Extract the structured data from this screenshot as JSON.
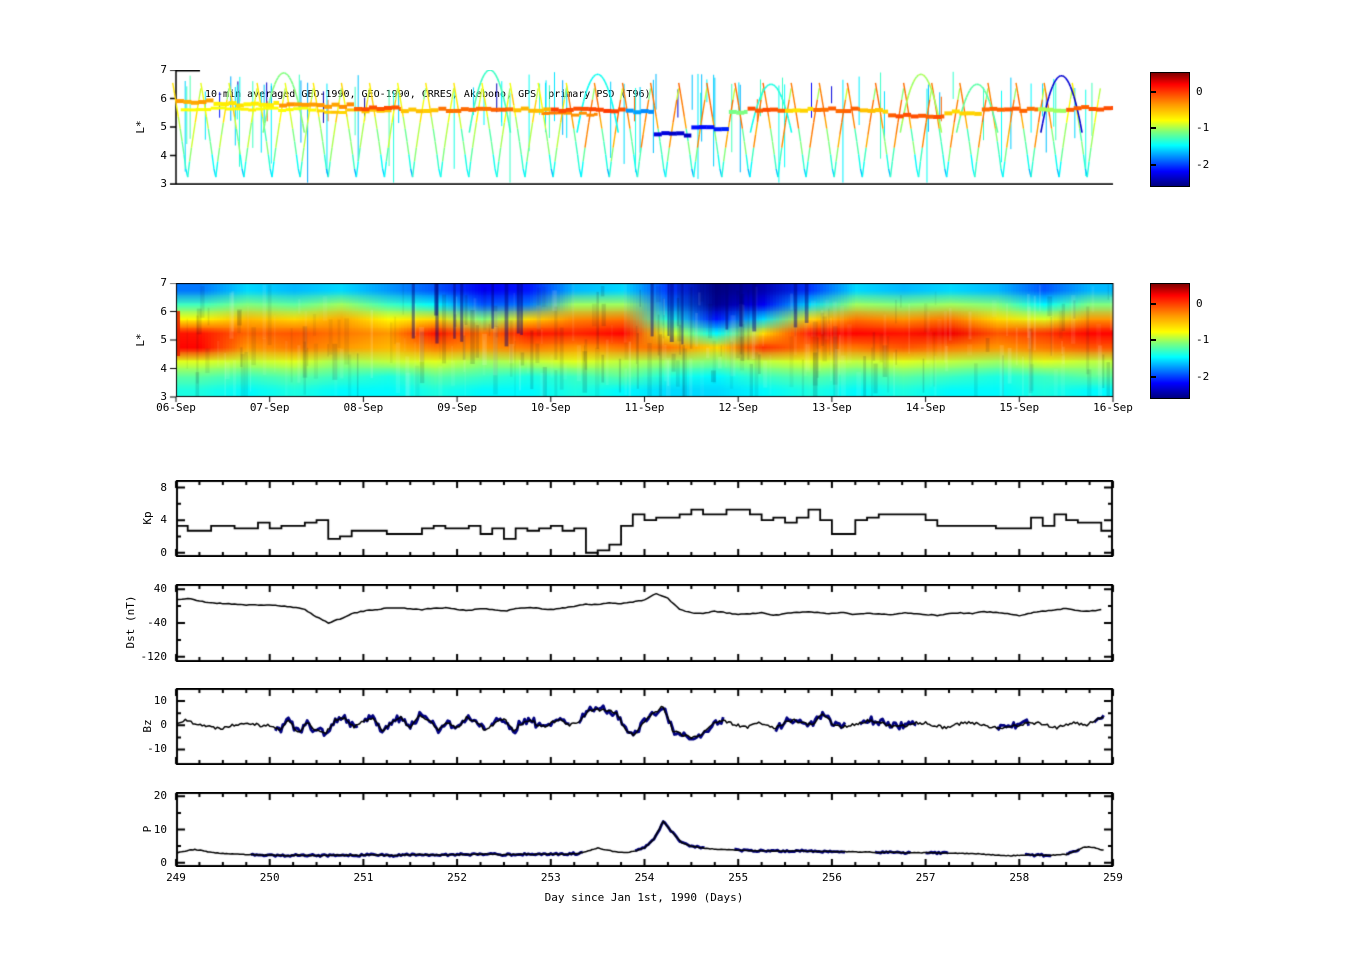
{
  "title": "10-min averaged GEO-1990, GEO-1990, CRRES, Akebono, GPS  primary PSD (T96)",
  "colorbar": {
    "tick_labels": [
      "0",
      "-1",
      "-2"
    ],
    "tick_values": [
      0,
      -1,
      -2
    ],
    "vmin": -2.55,
    "vmax": 0.55,
    "colormap": "jet"
  },
  "axes": {
    "x": {
      "label": "Day since Jan 1st, 1990 (Days)",
      "ticks": [
        249,
        250,
        251,
        252,
        253,
        254,
        255,
        256,
        257,
        258,
        259
      ],
      "lim": [
        249,
        259
      ],
      "minor_step": 0.25
    },
    "date_labels": [
      "06-Sep",
      "07-Sep",
      "08-Sep",
      "09-Sep",
      "10-Sep",
      "11-Sep",
      "12-Sep",
      "13-Sep",
      "14-Sep",
      "15-Sep",
      "16-Sep"
    ]
  },
  "panels": {
    "psd_scatter": {
      "ylabel": "L*",
      "ylim": [
        3,
        7
      ],
      "yticks": [
        3,
        4,
        5,
        6,
        7
      ]
    },
    "psd_map": {
      "ylabel": "L*",
      "ylim": [
        3,
        7
      ],
      "yticks": [
        3,
        4,
        5,
        6,
        7
      ]
    },
    "kp": {
      "ylabel": "Kp",
      "ylim": [
        -0.4,
        8.8
      ],
      "yticks": [
        0,
        4,
        8
      ],
      "yminor": [
        2,
        6
      ]
    },
    "dst": {
      "ylabel": "Dst (nT)",
      "ylim": [
        -130,
        50
      ],
      "yticks": [
        40,
        -40,
        -120
      ],
      "yminor": [
        0,
        -80
      ]
    },
    "bz": {
      "ylabel": "Bz",
      "ylim": [
        -16,
        15
      ],
      "yticks": [
        10,
        0,
        -10
      ],
      "yminor": [
        5,
        -5
      ]
    },
    "p": {
      "ylabel": "P",
      "ylim": [
        -1,
        21
      ],
      "yticks": [
        0,
        10,
        20
      ],
      "yminor": [
        5,
        15
      ]
    }
  },
  "chart_data": [
    {
      "type": "scatter",
      "panel": "psd_scatter",
      "description": "Satellite PSD tracks colored by log10 PSD, L* vs day",
      "xlim": [
        249,
        259
      ],
      "ylim": [
        3,
        7
      ],
      "geo_segments": [
        [
          249.0,
          249.4,
          5.9,
          -0.35
        ],
        [
          249.4,
          250.1,
          5.8,
          -0.55
        ],
        [
          250.1,
          250.9,
          5.75,
          -0.3
        ],
        [
          250.9,
          251.4,
          5.65,
          -0.1
        ],
        [
          251.4,
          251.8,
          5.6,
          -0.45
        ],
        [
          251.8,
          252.6,
          5.6,
          -0.15
        ],
        [
          252.6,
          253.0,
          5.6,
          -0.4
        ],
        [
          253.0,
          253.8,
          5.6,
          -0.05
        ],
        [
          253.8,
          254.1,
          5.55,
          -1.7
        ],
        [
          254.1,
          254.5,
          4.75,
          -2.3
        ],
        [
          254.5,
          254.9,
          4.95,
          -2.1
        ],
        [
          254.9,
          255.1,
          5.5,
          -1.0
        ],
        [
          255.1,
          255.5,
          5.6,
          -0.1
        ],
        [
          255.5,
          255.8,
          5.6,
          -0.5
        ],
        [
          255.8,
          256.3,
          5.6,
          -0.15
        ],
        [
          256.3,
          256.6,
          5.55,
          -0.45
        ],
        [
          256.6,
          257.2,
          5.4,
          -0.1
        ],
        [
          257.2,
          257.6,
          5.5,
          -0.5
        ],
        [
          257.6,
          258.2,
          5.6,
          -0.15
        ],
        [
          258.2,
          258.5,
          5.6,
          -0.9
        ],
        [
          258.5,
          259.0,
          5.65,
          -0.1
        ]
      ],
      "geo2_segments": [
        [
          249.05,
          250.5,
          5.62,
          -0.6
        ],
        [
          250.5,
          251.3,
          5.55,
          -0.45
        ],
        [
          252.9,
          253.5,
          5.45,
          -0.25
        ]
      ],
      "crres": {
        "first_perigee": 249.12,
        "spacing": 0.3,
        "count": 33,
        "half_width": 0.155,
        "l_min": 3.05,
        "l_max": 6.55,
        "red_interval": [
          253.2,
          258.4
        ]
      },
      "arcs": [
        [
          250.15,
          6.9,
          -1.0
        ],
        [
          252.35,
          7.0,
          -1.2
        ],
        [
          253.5,
          6.85,
          -1.35
        ],
        [
          255.35,
          6.5,
          -1.3
        ],
        [
          256.95,
          6.85,
          -0.9
        ],
        [
          257.55,
          6.5,
          -1.1
        ],
        [
          258.45,
          6.8,
          -2.3
        ]
      ],
      "vlines": {
        "count": 90,
        "seed": 11
      }
    },
    {
      "type": "heatmap",
      "panel": "psd_map",
      "x_range": [
        249,
        259
      ],
      "l_range": [
        3,
        7
      ],
      "col_width_days": 0.5,
      "log10_psd_grid_rows_top_to_bottom": [
        [
          -1.8,
          -1.5,
          -1.6,
          -1.5,
          -1.7,
          -1.9,
          -2.2,
          -2.1,
          -1.6,
          -1.5,
          -2.0,
          -2.6,
          -2.4,
          -2.0,
          -1.5,
          -1.6,
          -1.5,
          -1.6,
          -1.9,
          -1.6
        ],
        [
          -1.2,
          -1.0,
          -1.1,
          -0.9,
          -1.2,
          -1.4,
          -1.9,
          -1.8,
          -0.9,
          -0.9,
          -1.8,
          -2.5,
          -2.2,
          -1.5,
          -0.9,
          -1.0,
          -0.9,
          -1.0,
          -1.4,
          -1.0
        ],
        [
          -0.6,
          -0.4,
          -0.5,
          -0.35,
          -0.6,
          -0.5,
          -1.0,
          -0.5,
          -0.25,
          -0.2,
          -1.3,
          -2.1,
          -1.5,
          -0.5,
          -0.2,
          -0.3,
          -0.2,
          -0.5,
          -0.7,
          -0.3
        ],
        [
          0.1,
          -0.15,
          -0.1,
          -0.2,
          -0.3,
          0.1,
          -0.2,
          0.1,
          0.05,
          0.15,
          -0.7,
          -1.4,
          -0.5,
          0.1,
          0.15,
          0.1,
          0.2,
          -0.1,
          0.0,
          0.15
        ],
        [
          0.15,
          -0.3,
          -0.2,
          -0.3,
          -0.4,
          -0.2,
          -0.3,
          -0.2,
          -0.3,
          -0.2,
          -0.2,
          -0.5,
          0.0,
          -0.2,
          -0.2,
          -0.1,
          -0.2,
          -0.3,
          -0.2,
          -0.1
        ],
        [
          -0.7,
          -0.8,
          -0.7,
          -0.9,
          -0.8,
          -0.7,
          -0.9,
          -0.8,
          -0.7,
          -0.8,
          -0.9,
          -1.0,
          -0.8,
          -0.7,
          -0.8,
          -0.7,
          -0.8,
          -0.9,
          -0.7,
          -0.8
        ],
        [
          -1.1,
          -1.2,
          -1.1,
          -1.2,
          -1.3,
          -1.1,
          -1.2,
          -1.3,
          -1.2,
          -1.1,
          -1.3,
          -1.4,
          -1.2,
          -1.1,
          -1.2,
          -1.1,
          -1.2,
          -1.3,
          -1.2,
          -1.1
        ],
        [
          -1.3,
          -1.4,
          -1.3,
          -1.4,
          -1.4,
          -1.3,
          -1.4,
          -1.4,
          -1.3,
          -1.4,
          -1.5,
          -1.5,
          -1.4,
          -1.3,
          -1.4,
          -1.3,
          -1.4,
          -1.4,
          -1.3,
          -1.4
        ]
      ]
    },
    {
      "type": "line",
      "panel": "kp",
      "x_start": 249,
      "x_step": 0.125,
      "step_plot": true,
      "values": [
        3.3,
        2.7,
        2.7,
        3.3,
        3.3,
        3.0,
        3.0,
        3.7,
        3.0,
        3.3,
        3.3,
        3.7,
        4.0,
        1.7,
        2.0,
        2.7,
        2.7,
        2.7,
        2.3,
        2.3,
        2.3,
        3.0,
        3.3,
        3.0,
        3.0,
        3.3,
        2.3,
        3.0,
        1.7,
        3.0,
        2.7,
        3.0,
        3.3,
        2.7,
        3.0,
        0.0,
        0.3,
        1.0,
        3.3,
        4.7,
        4.0,
        4.3,
        4.3,
        4.7,
        5.3,
        4.7,
        4.7,
        5.3,
        5.3,
        4.7,
        4.0,
        4.3,
        3.7,
        4.3,
        5.3,
        4.0,
        2.3,
        2.3,
        4.0,
        4.3,
        4.7,
        4.7,
        4.7,
        4.7,
        4.0,
        3.3,
        3.3,
        3.3,
        3.3,
        3.3,
        3.0,
        3.0,
        3.0,
        4.3,
        3.3,
        4.7,
        4.0,
        3.7,
        3.7,
        2.7
      ]
    },
    {
      "type": "line",
      "panel": "dst",
      "x_start": 249,
      "x_step": 0.125,
      "values": [
        15,
        18,
        12,
        8,
        6,
        5,
        3,
        2,
        3,
        0,
        -3,
        -8,
        -25,
        -40,
        -30,
        -18,
        -12,
        -8,
        -5,
        -4,
        -6,
        -8,
        -5,
        -4,
        -8,
        -10,
        -6,
        -8,
        -12,
        -6,
        -4,
        -5,
        -8,
        -5,
        0,
        5,
        3,
        8,
        6,
        10,
        14,
        30,
        18,
        -8,
        -16,
        -18,
        -12,
        -16,
        -20,
        -18,
        -16,
        -22,
        -18,
        -15,
        -13,
        -16,
        -18,
        -15,
        -20,
        -16,
        -18,
        -20,
        -16,
        -18,
        -20,
        -22,
        -18,
        -16,
        -18,
        -13,
        -15,
        -18,
        -22,
        -16,
        -12,
        -9,
        -6,
        -10,
        -12,
        -8
      ]
    },
    {
      "type": "line",
      "panel": "bz",
      "x_start": 249,
      "x_step": 0.1,
      "overlay_color": "#000080",
      "values": [
        1,
        2,
        1,
        0,
        -1,
        -1,
        0,
        1,
        1,
        0,
        0,
        -2,
        2,
        -3,
        1,
        -2,
        -3,
        2,
        3,
        -1,
        2,
        3,
        -2,
        1,
        3,
        -1,
        4,
        2,
        -2,
        1,
        -1,
        3,
        2,
        -2,
        1,
        3,
        -2,
        1,
        2,
        -1,
        1,
        2,
        0,
        1,
        6,
        6.5,
        6,
        5.5,
        -2,
        -4,
        2,
        5,
        8,
        -2,
        -4,
        -5,
        -4,
        0,
        2,
        1,
        0,
        -1,
        1,
        0,
        -1,
        1,
        2,
        1,
        0,
        5,
        1,
        -1,
        0,
        1,
        2,
        1,
        0,
        -1,
        0,
        1,
        1,
        0,
        -1,
        0,
        1,
        1,
        0,
        -1,
        -1,
        0,
        0,
        1,
        1,
        0,
        -1,
        0,
        1,
        0,
        2,
        3
      ],
      "overlay_segments": [
        [
          250.05,
          250.95
        ],
        [
          251.0,
          252.3
        ],
        [
          252.35,
          253.2
        ],
        [
          253.3,
          254.85
        ],
        [
          255.4,
          256.15
        ],
        [
          256.3,
          256.9
        ],
        [
          257.75,
          258.1
        ],
        [
          258.8,
          259.0
        ]
      ]
    },
    {
      "type": "line",
      "panel": "p",
      "x_start": 249,
      "x_step": 0.1,
      "overlay_color": "#000080",
      "values": [
        3,
        3.5,
        4,
        3.5,
        3,
        2.8,
        2.6,
        2.5,
        2.4,
        2.3,
        2.3,
        2.2,
        2.2,
        2.3,
        2.2,
        2.1,
        2.2,
        2.3,
        2.2,
        2.2,
        2.3,
        2.4,
        2.3,
        2.2,
        2.3,
        2.4,
        2.5,
        2.4,
        2.3,
        2.4,
        2.5,
        2.4,
        2.5,
        2.6,
        2.5,
        2.4,
        2.5,
        2.6,
        2.5,
        2.6,
        2.6,
        2.5,
        2.6,
        2.8,
        3.5,
        4.5,
        3.8,
        3.2,
        3.0,
        3.5,
        4.5,
        7,
        12.5,
        9,
        6,
        5,
        4.5,
        4.2,
        4.0,
        3.9,
        3.8,
        3.7,
        3.6,
        3.6,
        3.5,
        3.5,
        3.6,
        3.5,
        3.4,
        3.4,
        3.4,
        3.3,
        3.3,
        3.2,
        3.2,
        3.1,
        3.2,
        3.1,
        3.0,
        3.0,
        3.0,
        2.9,
        2.9,
        2.8,
        2.8,
        2.7,
        2.6,
        2.4,
        2.2,
        2.1,
        2.2,
        2.4,
        2.3,
        2.2,
        2.3,
        2.5,
        3.5,
        4.8,
        4.5,
        3.8
      ],
      "overlay_segments": [
        [
          249.8,
          253.35
        ],
        [
          253.9,
          254.65
        ],
        [
          254.95,
          256.15
        ],
        [
          256.45,
          256.85
        ],
        [
          257.0,
          257.25
        ],
        [
          258.05,
          258.35
        ],
        [
          258.5,
          258.65
        ]
      ]
    }
  ]
}
